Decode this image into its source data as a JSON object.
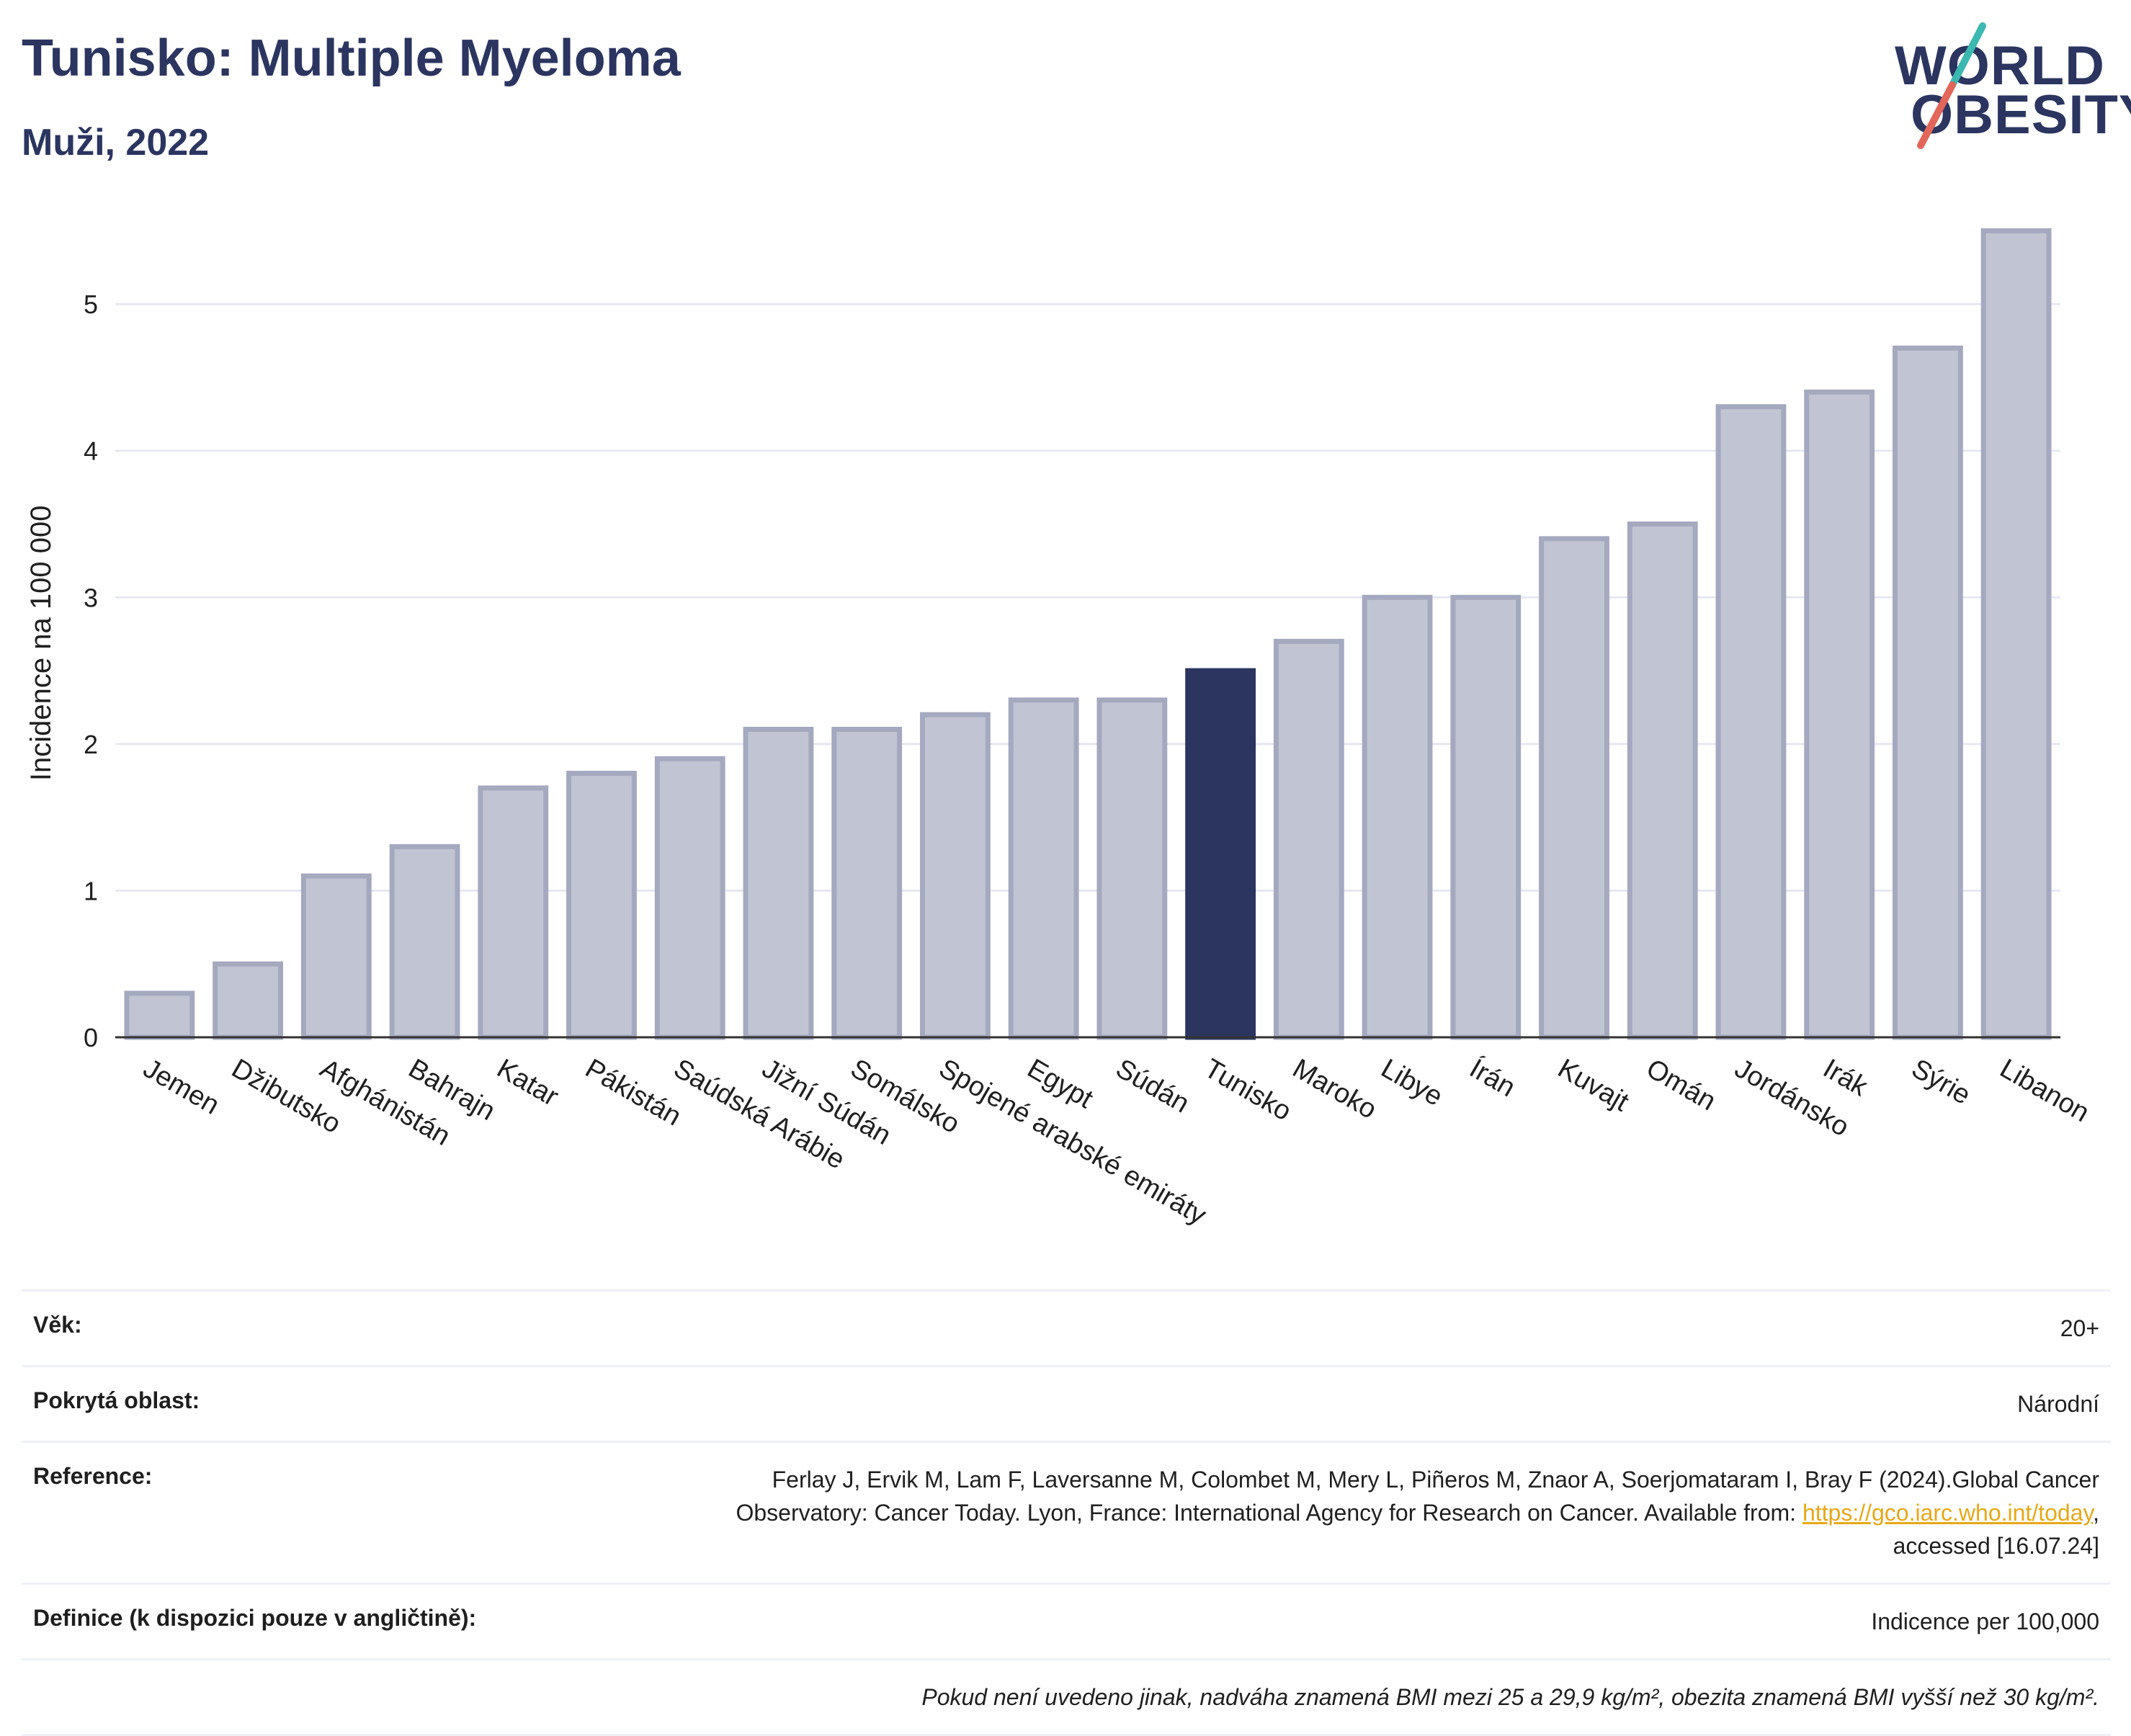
{
  "header": {
    "title": "Tunisko: Multiple Myeloma",
    "subtitle": "Muži, 2022"
  },
  "logo": {
    "line1": "WORLD",
    "line2": "OBESITY",
    "accent_colors": [
      "#3bb8b0",
      "#e2665a"
    ]
  },
  "chart_data": {
    "type": "bar",
    "categories": [
      "Jemen",
      "Džibutsko",
      "Afghánistán",
      "Bahrajn",
      "Katar",
      "Pákistán",
      "Saúdská Arábie",
      "Jižní Súdán",
      "Somálsko",
      "Spojené arabské emiráty",
      "Egypt",
      "Súdán",
      "Tunisko",
      "Maroko",
      "Libye",
      "Írán",
      "Kuvajt",
      "Omán",
      "Jordánsko",
      "Irák",
      "Sýrie",
      "Libanon"
    ],
    "values": [
      0.3,
      0.5,
      1.1,
      1.3,
      1.7,
      1.8,
      1.9,
      2.1,
      2.1,
      2.2,
      2.3,
      2.3,
      2.5,
      2.7,
      3.0,
      3.0,
      3.4,
      3.5,
      4.3,
      4.4,
      4.7,
      5.5
    ],
    "highlight": "Tunisko",
    "ylabel": "Incidence na 100 000",
    "ylim": [
      0,
      5.6
    ],
    "yticks": [
      0,
      1,
      2,
      3,
      4,
      5
    ],
    "grid": true,
    "colors": {
      "bar": "#c1c4d2",
      "bar_border": "#a4a9bf",
      "highlight": "#2b3560",
      "grid": "#e6e8ef"
    }
  },
  "info": {
    "age_label": "Věk:",
    "age_value": "20+",
    "area_label": "Pokrytá oblast:",
    "area_value": "Národní",
    "reference_label": "Reference:",
    "reference_text_1": "Ferlay J, Ervik M, Lam F, Laversanne M, Colombet M, Mery L, Piñeros M, Znaor A, Soerjomataram I, Bray F (2024).Global Cancer Observatory: Cancer Today. Lyon, France: International Agency for Research on Cancer. Available from: ",
    "reference_link": "https://gco.iarc.who.int/today",
    "reference_text_2": ", accessed [16.07.24]",
    "definition_label": "Definice (k dispozici pouze v angličtině):",
    "definition_value": "Indicence per 100,000",
    "note": "Pokud není uvedeno jinak, nadváha znamená BMI mezi 25 a 29,9 kg/m², obezita znamená BMI vyšší než 30 kg/m²."
  }
}
